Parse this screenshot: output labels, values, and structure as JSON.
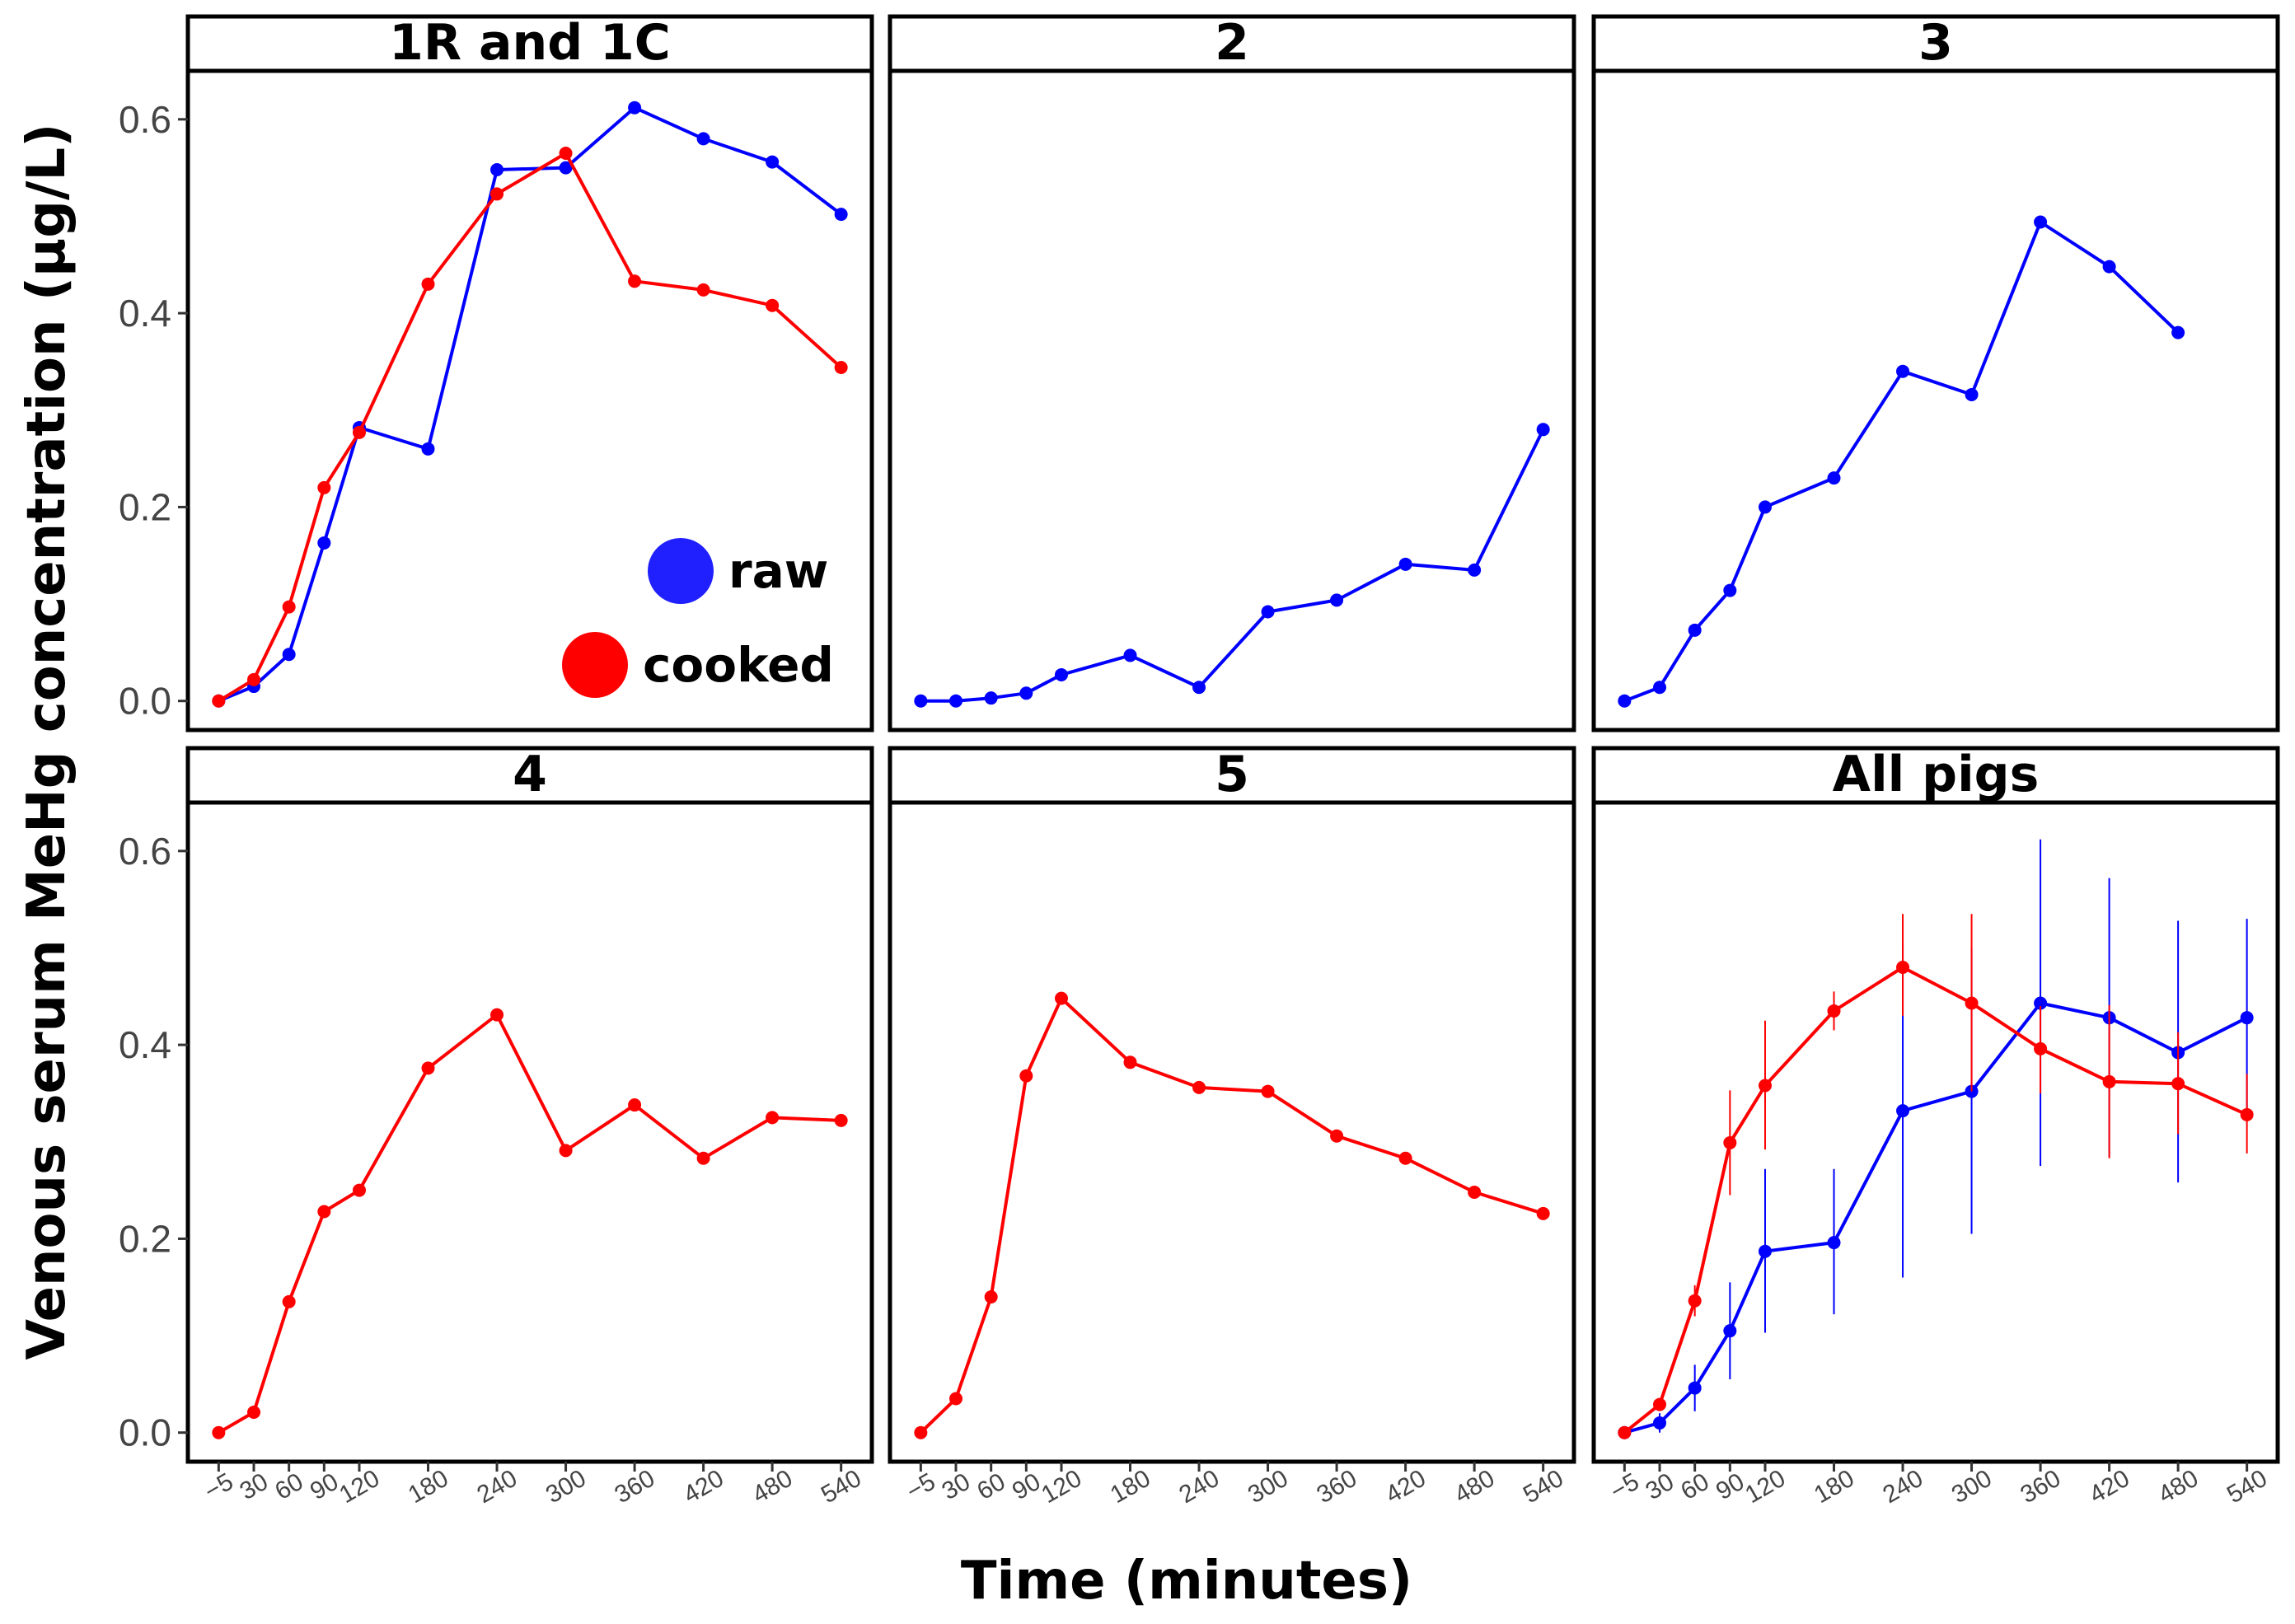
{
  "chart_data": {
    "type": "line",
    "xlabel": "Time (minutes)",
    "ylabel": "Venous serum MeHg concentration (µg/L)",
    "x_ticks": [
      -5,
      30,
      60,
      90,
      120,
      180,
      240,
      300,
      360,
      420,
      480,
      540
    ],
    "x_tick_labels": [
      "−5",
      "30",
      "60",
      "90",
      "120",
      "180",
      "240",
      "300",
      "360",
      "420",
      "480",
      "540"
    ],
    "y_ticks": [
      0.0,
      0.2,
      0.4,
      0.6
    ],
    "y_tick_labels": [
      "0.0",
      "0.2",
      "0.4",
      "0.6"
    ],
    "ylim": [
      -0.03,
      0.65
    ],
    "legend": {
      "position": "bottom-right of first panel",
      "entries": [
        {
          "label": "raw",
          "color": "#2020ff"
        },
        {
          "label": "cooked",
          "color": "#ff0000"
        }
      ]
    },
    "panels": [
      {
        "title": "1R and 1C",
        "series": [
          {
            "name": "raw",
            "color": "#0000ff",
            "x": [
              -5,
              30,
              60,
              90,
              120,
              180,
              240,
              300,
              360,
              420,
              480,
              540
            ],
            "y": [
              0.0,
              0.015,
              0.048,
              0.163,
              0.282,
              0.26,
              0.548,
              0.55,
              0.612,
              0.58,
              0.556,
              0.502
            ]
          },
          {
            "name": "cooked",
            "color": "#ff0000",
            "x": [
              -5,
              30,
              60,
              90,
              120,
              180,
              240,
              300,
              360,
              420,
              480,
              540
            ],
            "y": [
              0.0,
              0.022,
              0.097,
              0.22,
              0.277,
              0.43,
              0.523,
              0.565,
              0.433,
              0.424,
              0.408,
              0.344
            ]
          }
        ]
      },
      {
        "title": "2",
        "series": [
          {
            "name": "raw",
            "color": "#0000ff",
            "x": [
              -5,
              30,
              60,
              90,
              120,
              180,
              240,
              300,
              360,
              420,
              480,
              540
            ],
            "y": [
              0.0,
              0.0,
              0.003,
              0.008,
              0.027,
              0.047,
              0.014,
              0.092,
              0.104,
              0.141,
              0.135,
              0.28
            ]
          }
        ]
      },
      {
        "title": "3",
        "series": [
          {
            "name": "raw",
            "color": "#0000ff",
            "x": [
              -5,
              30,
              60,
              90,
              120,
              180,
              240,
              300,
              360,
              420,
              480
            ],
            "y": [
              0.0,
              0.014,
              0.073,
              0.114,
              0.2,
              0.23,
              0.34,
              0.316,
              0.494,
              0.448,
              0.38
            ]
          }
        ]
      },
      {
        "title": "4",
        "series": [
          {
            "name": "cooked",
            "color": "#ff0000",
            "x": [
              -5,
              30,
              60,
              90,
              120,
              180,
              240,
              300,
              360,
              420,
              480,
              540
            ],
            "y": [
              0.0,
              0.021,
              0.135,
              0.228,
              0.25,
              0.376,
              0.431,
              0.291,
              0.338,
              0.283,
              0.325,
              0.322
            ]
          }
        ]
      },
      {
        "title": "5",
        "series": [
          {
            "name": "cooked",
            "color": "#ff0000",
            "x": [
              -5,
              30,
              60,
              90,
              120,
              180,
              240,
              300,
              360,
              420,
              480,
              540
            ],
            "y": [
              0.0,
              0.035,
              0.14,
              0.368,
              0.448,
              0.382,
              0.356,
              0.352,
              0.306,
              0.283,
              0.248,
              0.226
            ]
          }
        ]
      },
      {
        "title": "All pigs",
        "series": [
          {
            "name": "raw",
            "color": "#0000ff",
            "x": [
              -5,
              30,
              60,
              90,
              120,
              180,
              240,
              300,
              360,
              420,
              480,
              540
            ],
            "y": [
              0.0,
              0.01,
              0.046,
              0.105,
              0.187,
              0.196,
              0.332,
              0.352,
              0.443,
              0.428,
              0.392,
              0.428
            ],
            "err_low": [
              0.0,
              0.0,
              0.022,
              0.055,
              0.103,
              0.122,
              0.16,
              0.205,
              0.275,
              0.285,
              0.258,
              0.328
            ],
            "err_high": [
              0.0,
              0.02,
              0.07,
              0.155,
              0.272,
              0.272,
              0.505,
              0.5,
              0.612,
              0.572,
              0.528,
              0.53
            ]
          },
          {
            "name": "cooked",
            "color": "#ff0000",
            "x": [
              -5,
              30,
              60,
              90,
              120,
              180,
              240,
              300,
              360,
              420,
              480,
              540
            ],
            "y": [
              0.0,
              0.029,
              0.136,
              0.299,
              0.358,
              0.435,
              0.48,
              0.443,
              0.396,
              0.362,
              0.36,
              0.328
            ],
            "err_low": [
              0.0,
              0.024,
              0.12,
              0.245,
              0.292,
              0.415,
              0.43,
              0.352,
              0.35,
              0.283,
              0.308,
              0.288
            ],
            "err_high": [
              0.0,
              0.034,
              0.152,
              0.353,
              0.425,
              0.455,
              0.535,
              0.535,
              0.44,
              0.441,
              0.413,
              0.37
            ]
          }
        ]
      }
    ]
  }
}
